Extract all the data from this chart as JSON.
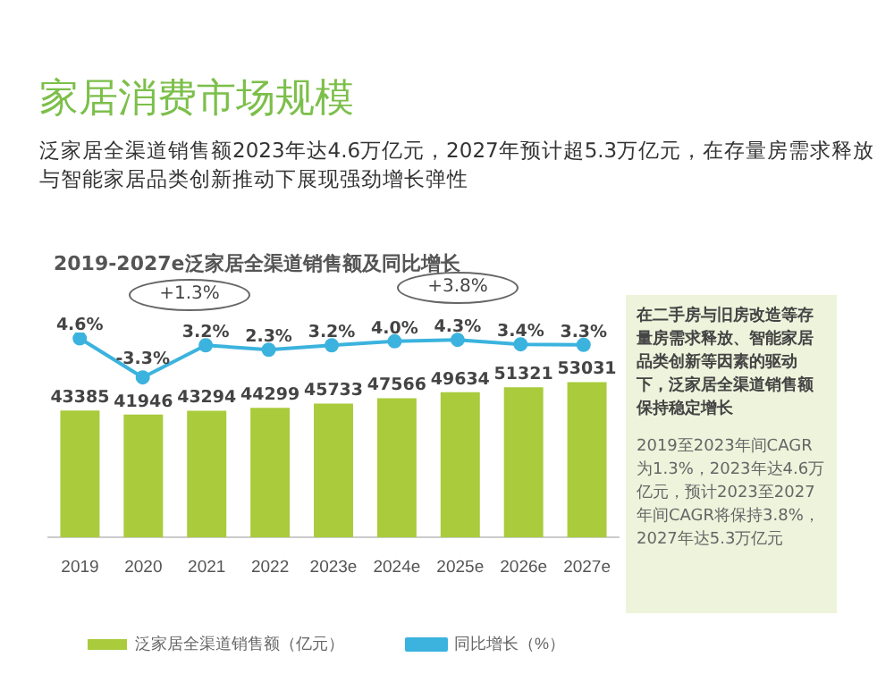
{
  "chart_data": [
    {
      "type": "bar",
      "categories": [
        "2019",
        "2020",
        "2021",
        "2022",
        "2023e",
        "2024e",
        "2025e",
        "2026e",
        "2027e"
      ],
      "series": [
        {
          "name": "泛家居全渠道销售额（亿元）",
          "type": "bar",
          "color": "#a9cb3c",
          "values": [
            43385,
            41946,
            43294,
            44299,
            45733,
            47566,
            49634,
            51321,
            53031
          ]
        }
      ],
      "data_labels": true,
      "legend": "bottom left",
      "grid": false,
      "tick_labels": "x",
      "annotations": [
        "2019-2027e泛家居全渠道销售额及同比增长",
        "+1.3%",
        "+3.8%",
        "在二手房与旧房改造等存量房需求释放、智能家居品类创新等因素的驱动下，泛家居全渠道销售额保持稳定增长",
        "2019至2023年间CAGR为1.3%，2023年达4.6万亿元，预计2023至2027年间CAGR将保持3.8%，2027年达5.3万亿元"
      ]
    },
    {
      "type": "line",
      "title": "家居消费市场规模",
      "subtitle": "泛家居全渠道销售额2023年达4.6万亿元，2027年预计超5.3万亿元，在存量房需求释放与智能家居品类创新推动下展现强劲增长弹性",
      "categories": [
        null,
        null,
        null,
        null,
        null,
        null,
        null,
        null,
        null
      ],
      "series": [
        {
          "name": "同比增长（%）",
          "type": "line",
          "color": "#3bb3de",
          "values": [
            4.6,
            -3.3,
            3.2,
            2.3,
            3.2,
            4.0,
            4.3,
            3.4,
            3.3
          ],
          "value_labels": [
            "4.6%",
            "-3.3%",
            "3.2%",
            "2.3%",
            "3.2%",
            "4.0%",
            "4.3%",
            "3.4%",
            "3.3%"
          ]
        }
      ],
      "marker": "circle",
      "legend": "bottom right",
      "grid": false,
      "tick_labels": false
    }
  ]
}
